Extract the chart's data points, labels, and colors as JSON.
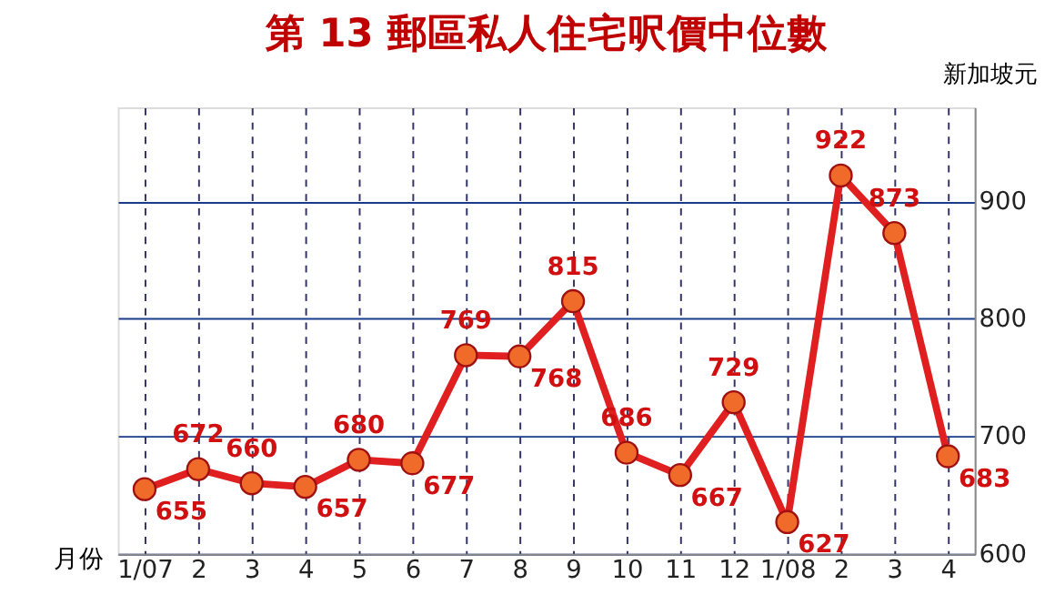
{
  "chart_data": {
    "type": "line",
    "title": "第 13 郵區私人住宅呎價中位數",
    "xlabel": "月份",
    "ylabel": "新加坡元",
    "categories": [
      "1/07",
      "2",
      "3",
      "4",
      "5",
      "6",
      "7",
      "8",
      "9",
      "10",
      "11",
      "12",
      "1/08",
      "2",
      "3",
      "4"
    ],
    "series": [
      {
        "color": "#e02020",
        "values": [
          655,
          672,
          660,
          657,
          680,
          677,
          769,
          768,
          815,
          686,
          667,
          729,
          627,
          922,
          873,
          683
        ]
      }
    ],
    "ylim": [
      600,
      980
    ],
    "yticks": [
      600,
      700,
      800,
      900
    ],
    "grid": true,
    "marker": "circle",
    "line_style": "solid",
    "data_labels": true
  }
}
